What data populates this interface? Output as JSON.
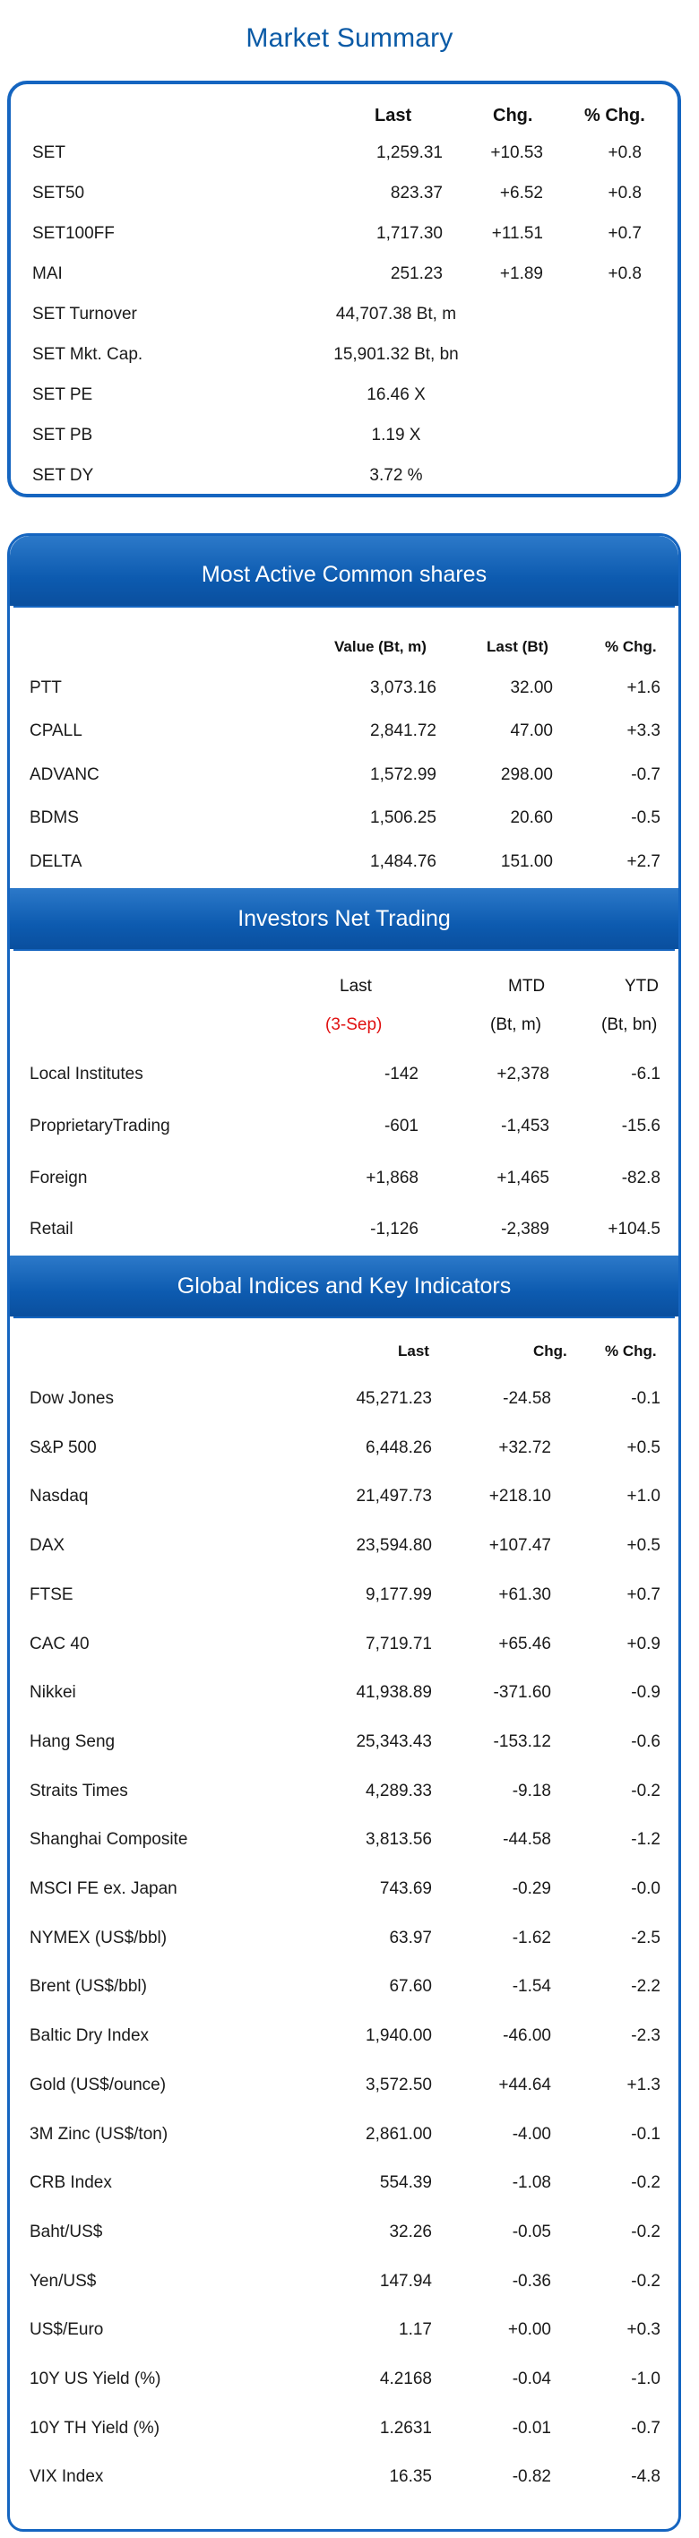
{
  "title": "Market Summary",
  "summary": {
    "headers": {
      "last": "Last",
      "chg": "Chg.",
      "pct": "% Chg."
    },
    "index_rows": [
      {
        "name": "SET",
        "last": "1,259.31",
        "chg": "+10.53",
        "pct": "+0.8"
      },
      {
        "name": "SET50",
        "last": "823.37",
        "chg": "+6.52",
        "pct": "+0.8"
      },
      {
        "name": "SET100FF",
        "last": "1,717.30",
        "chg": "+11.51",
        "pct": "+0.7"
      },
      {
        "name": "MAI",
        "last": "251.23",
        "chg": "+1.89",
        "pct": "+0.8"
      }
    ],
    "stat_rows": [
      {
        "name": "SET Turnover",
        "value": "44,707.38 Bt, m"
      },
      {
        "name": "SET Mkt. Cap.",
        "value": "15,901.32 Bt, bn"
      },
      {
        "name": "SET PE",
        "value": "16.46 X"
      },
      {
        "name": "SET PB",
        "value": "1.19 X"
      },
      {
        "name": "SET DY",
        "value": "3.72 %"
      }
    ]
  },
  "most_active": {
    "title": "Most Active Common shares",
    "headers": {
      "value": "Value (Bt, m)",
      "last": "Last (Bt)",
      "pct": "% Chg."
    },
    "rows": [
      {
        "name": "PTT",
        "value": "3,073.16",
        "last": "32.00",
        "pct": "+1.6"
      },
      {
        "name": "CPALL",
        "value": "2,841.72",
        "last": "47.00",
        "pct": "+3.3"
      },
      {
        "name": "ADVANC",
        "value": "1,572.99",
        "last": "298.00",
        "pct": "-0.7"
      },
      {
        "name": "BDMS",
        "value": "1,506.25",
        "last": "20.60",
        "pct": "-0.5"
      },
      {
        "name": "DELTA",
        "value": "1,484.76",
        "last": "151.00",
        "pct": "+2.7"
      }
    ]
  },
  "investors": {
    "title": "Investors Net Trading",
    "headers": {
      "last": "Last",
      "mtd": "MTD",
      "ytd": "YTD"
    },
    "subheaders": {
      "last": "(3-Sep)",
      "mtd": "(Bt, m)",
      "ytd": "(Bt, bn)"
    },
    "date_color": "#e01010",
    "rows": [
      {
        "name": "Local Institutes",
        "last": "-142",
        "mtd": "+2,378",
        "ytd": "-6.1"
      },
      {
        "name": "ProprietaryTrading",
        "last": "-601",
        "mtd": "-1,453",
        "ytd": "-15.6"
      },
      {
        "name": "Foreign",
        "last": "+1,868",
        "mtd": "+1,465",
        "ytd": "-82.8"
      },
      {
        "name": "Retail",
        "last": "-1,126",
        "mtd": "-2,389",
        "ytd": "+104.5"
      }
    ]
  },
  "global": {
    "title": "Global Indices and Key Indicators",
    "headers": {
      "last": "Last",
      "chg": "Chg.",
      "pct": "% Chg."
    },
    "rows": [
      {
        "name": "Dow Jones",
        "last": "45,271.23",
        "chg": "-24.58",
        "pct": "-0.1"
      },
      {
        "name": "S&P 500",
        "last": "6,448.26",
        "chg": "+32.72",
        "pct": "+0.5"
      },
      {
        "name": "Nasdaq",
        "last": "21,497.73",
        "chg": "+218.10",
        "pct": "+1.0"
      },
      {
        "name": "DAX",
        "last": "23,594.80",
        "chg": "+107.47",
        "pct": "+0.5"
      },
      {
        "name": "FTSE",
        "last": "9,177.99",
        "chg": "+61.30",
        "pct": "+0.7"
      },
      {
        "name": "CAC 40",
        "last": "7,719.71",
        "chg": "+65.46",
        "pct": "+0.9"
      },
      {
        "name": "Nikkei",
        "last": "41,938.89",
        "chg": "-371.60",
        "pct": "-0.9"
      },
      {
        "name": "Hang Seng",
        "last": "25,343.43",
        "chg": "-153.12",
        "pct": "-0.6"
      },
      {
        "name": "Straits Times",
        "last": "4,289.33",
        "chg": "-9.18",
        "pct": "-0.2"
      },
      {
        "name": "Shanghai Composite",
        "last": "3,813.56",
        "chg": "-44.58",
        "pct": "-1.2"
      },
      {
        "name": "MSCI FE ex. Japan",
        "last": "743.69",
        "chg": "-0.29",
        "pct": "-0.0"
      },
      {
        "name": "NYMEX (US$/bbl)",
        "last": "63.97",
        "chg": "-1.62",
        "pct": "-2.5"
      },
      {
        "name": "Brent (US$/bbl)",
        "last": "67.60",
        "chg": "-1.54",
        "pct": "-2.2"
      },
      {
        "name": "Baltic Dry Index",
        "last": "1,940.00",
        "chg": "-46.00",
        "pct": "-2.3"
      },
      {
        "name": "Gold (US$/ounce)",
        "last": "3,572.50",
        "chg": "+44.64",
        "pct": "+1.3"
      },
      {
        "name": "3M Zinc (US$/ton)",
        "last": "2,861.00",
        "chg": "-4.00",
        "pct": "-0.1"
      },
      {
        "name": "CRB Index",
        "last": "554.39",
        "chg": "-1.08",
        "pct": "-0.2"
      },
      {
        "name": "Baht/US$",
        "last": "32.26",
        "chg": "-0.05",
        "pct": "-0.2"
      },
      {
        "name": "Yen/US$",
        "last": "147.94",
        "chg": "-0.36",
        "pct": "-0.2"
      },
      {
        "name": "US$/Euro",
        "last": "1.17",
        "chg": "+0.00",
        "pct": "+0.3"
      },
      {
        "name": "10Y US Yield (%)",
        "last": "4.2168",
        "chg": "-0.04",
        "pct": "-1.0"
      },
      {
        "name": "10Y TH Yield (%)",
        "last": "1.2631",
        "chg": "-0.01",
        "pct": "-0.7"
      },
      {
        "name": "VIX Index",
        "last": "16.35",
        "chg": "-0.82",
        "pct": "-4.8"
      }
    ]
  },
  "colors": {
    "title_blue": "#0a5aa6",
    "border_blue": "#1565c0",
    "band_blue": "#0d5bb0",
    "date_red": "#e01010"
  }
}
